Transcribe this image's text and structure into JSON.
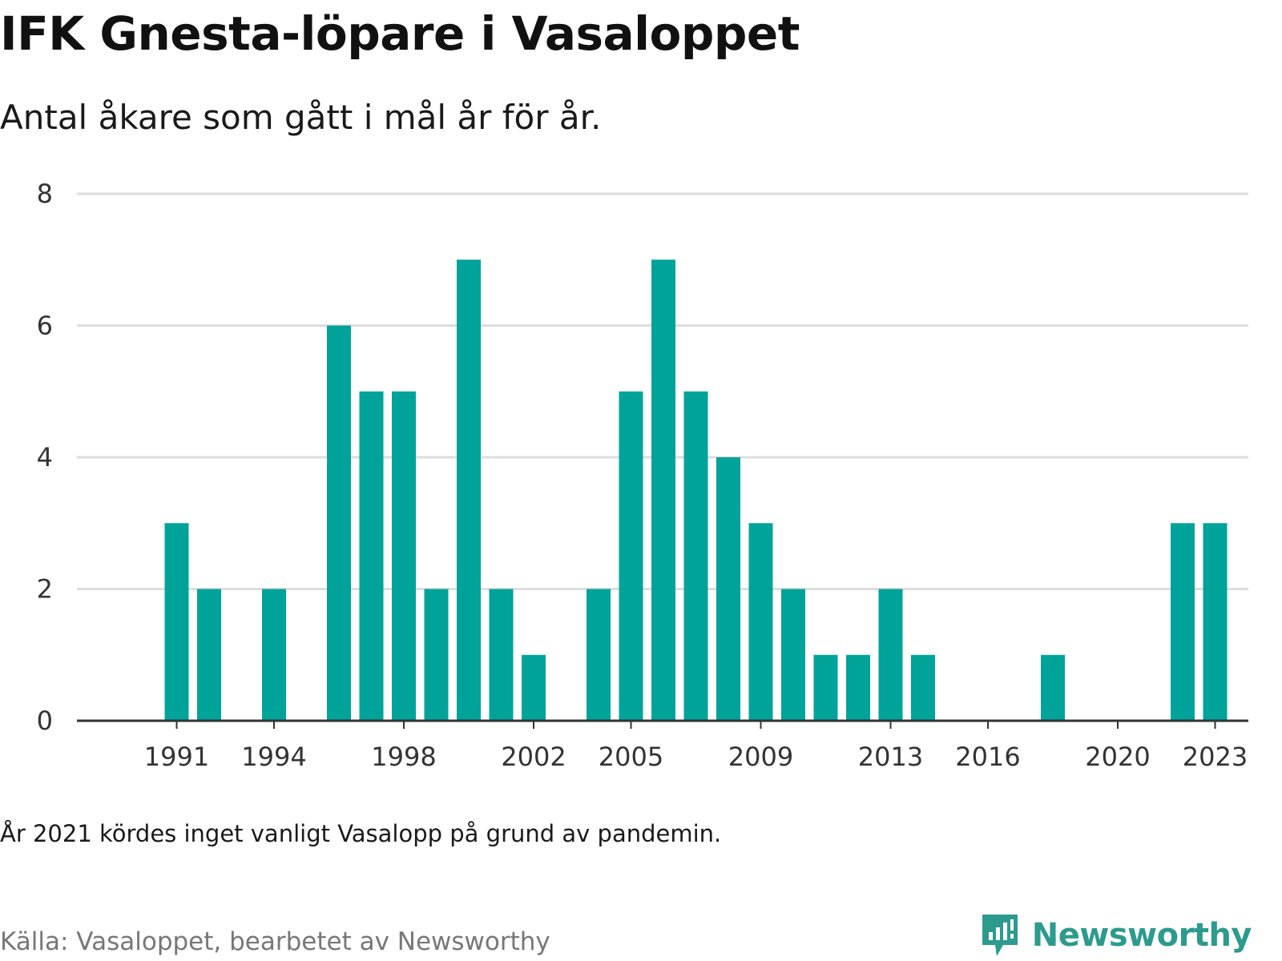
{
  "title": "IFK Gnesta-löpare i Vasaloppet",
  "subtitle": "Antal åkare som gått i mål år för år.",
  "note": "År 2021 kördes inget vanligt Vasalopp på grund av pandemin.",
  "source": "Källa: Vasaloppet, bearbetet av Newsworthy",
  "brand": {
    "name": "Newsworthy",
    "icon": "newsworthy-logo-icon",
    "color": "#2c9b8e"
  },
  "chart_data": {
    "type": "bar",
    "title": "IFK Gnesta-löpare i Vasaloppet",
    "subtitle": "Antal åkare som gått i mål år för år.",
    "categories": [
      1990,
      1991,
      1992,
      1993,
      1994,
      1995,
      1996,
      1997,
      1998,
      1999,
      2000,
      2001,
      2002,
      2003,
      2004,
      2005,
      2006,
      2007,
      2008,
      2009,
      2010,
      2011,
      2012,
      2013,
      2014,
      2015,
      2016,
      2017,
      2018,
      2019,
      2020,
      2021,
      2022,
      2023,
      2024
    ],
    "values": [
      null,
      3,
      2,
      null,
      2,
      null,
      6,
      5,
      5,
      2,
      7,
      2,
      1,
      null,
      2,
      5,
      7,
      5,
      4,
      3,
      2,
      1,
      1,
      2,
      1,
      null,
      null,
      null,
      1,
      null,
      null,
      null,
      3,
      3,
      null
    ],
    "x_tick_labels": [
      "1991",
      "1994",
      "1998",
      "2002",
      "2005",
      "2009",
      "2013",
      "2016",
      "2020",
      "2023"
    ],
    "y_ticks": [
      0,
      2,
      4,
      6,
      8
    ],
    "ylim": [
      0,
      8
    ],
    "grid": true,
    "bar_color": "#00a39a",
    "grid_color": "#dddddd",
    "axis_color": "#333333"
  }
}
